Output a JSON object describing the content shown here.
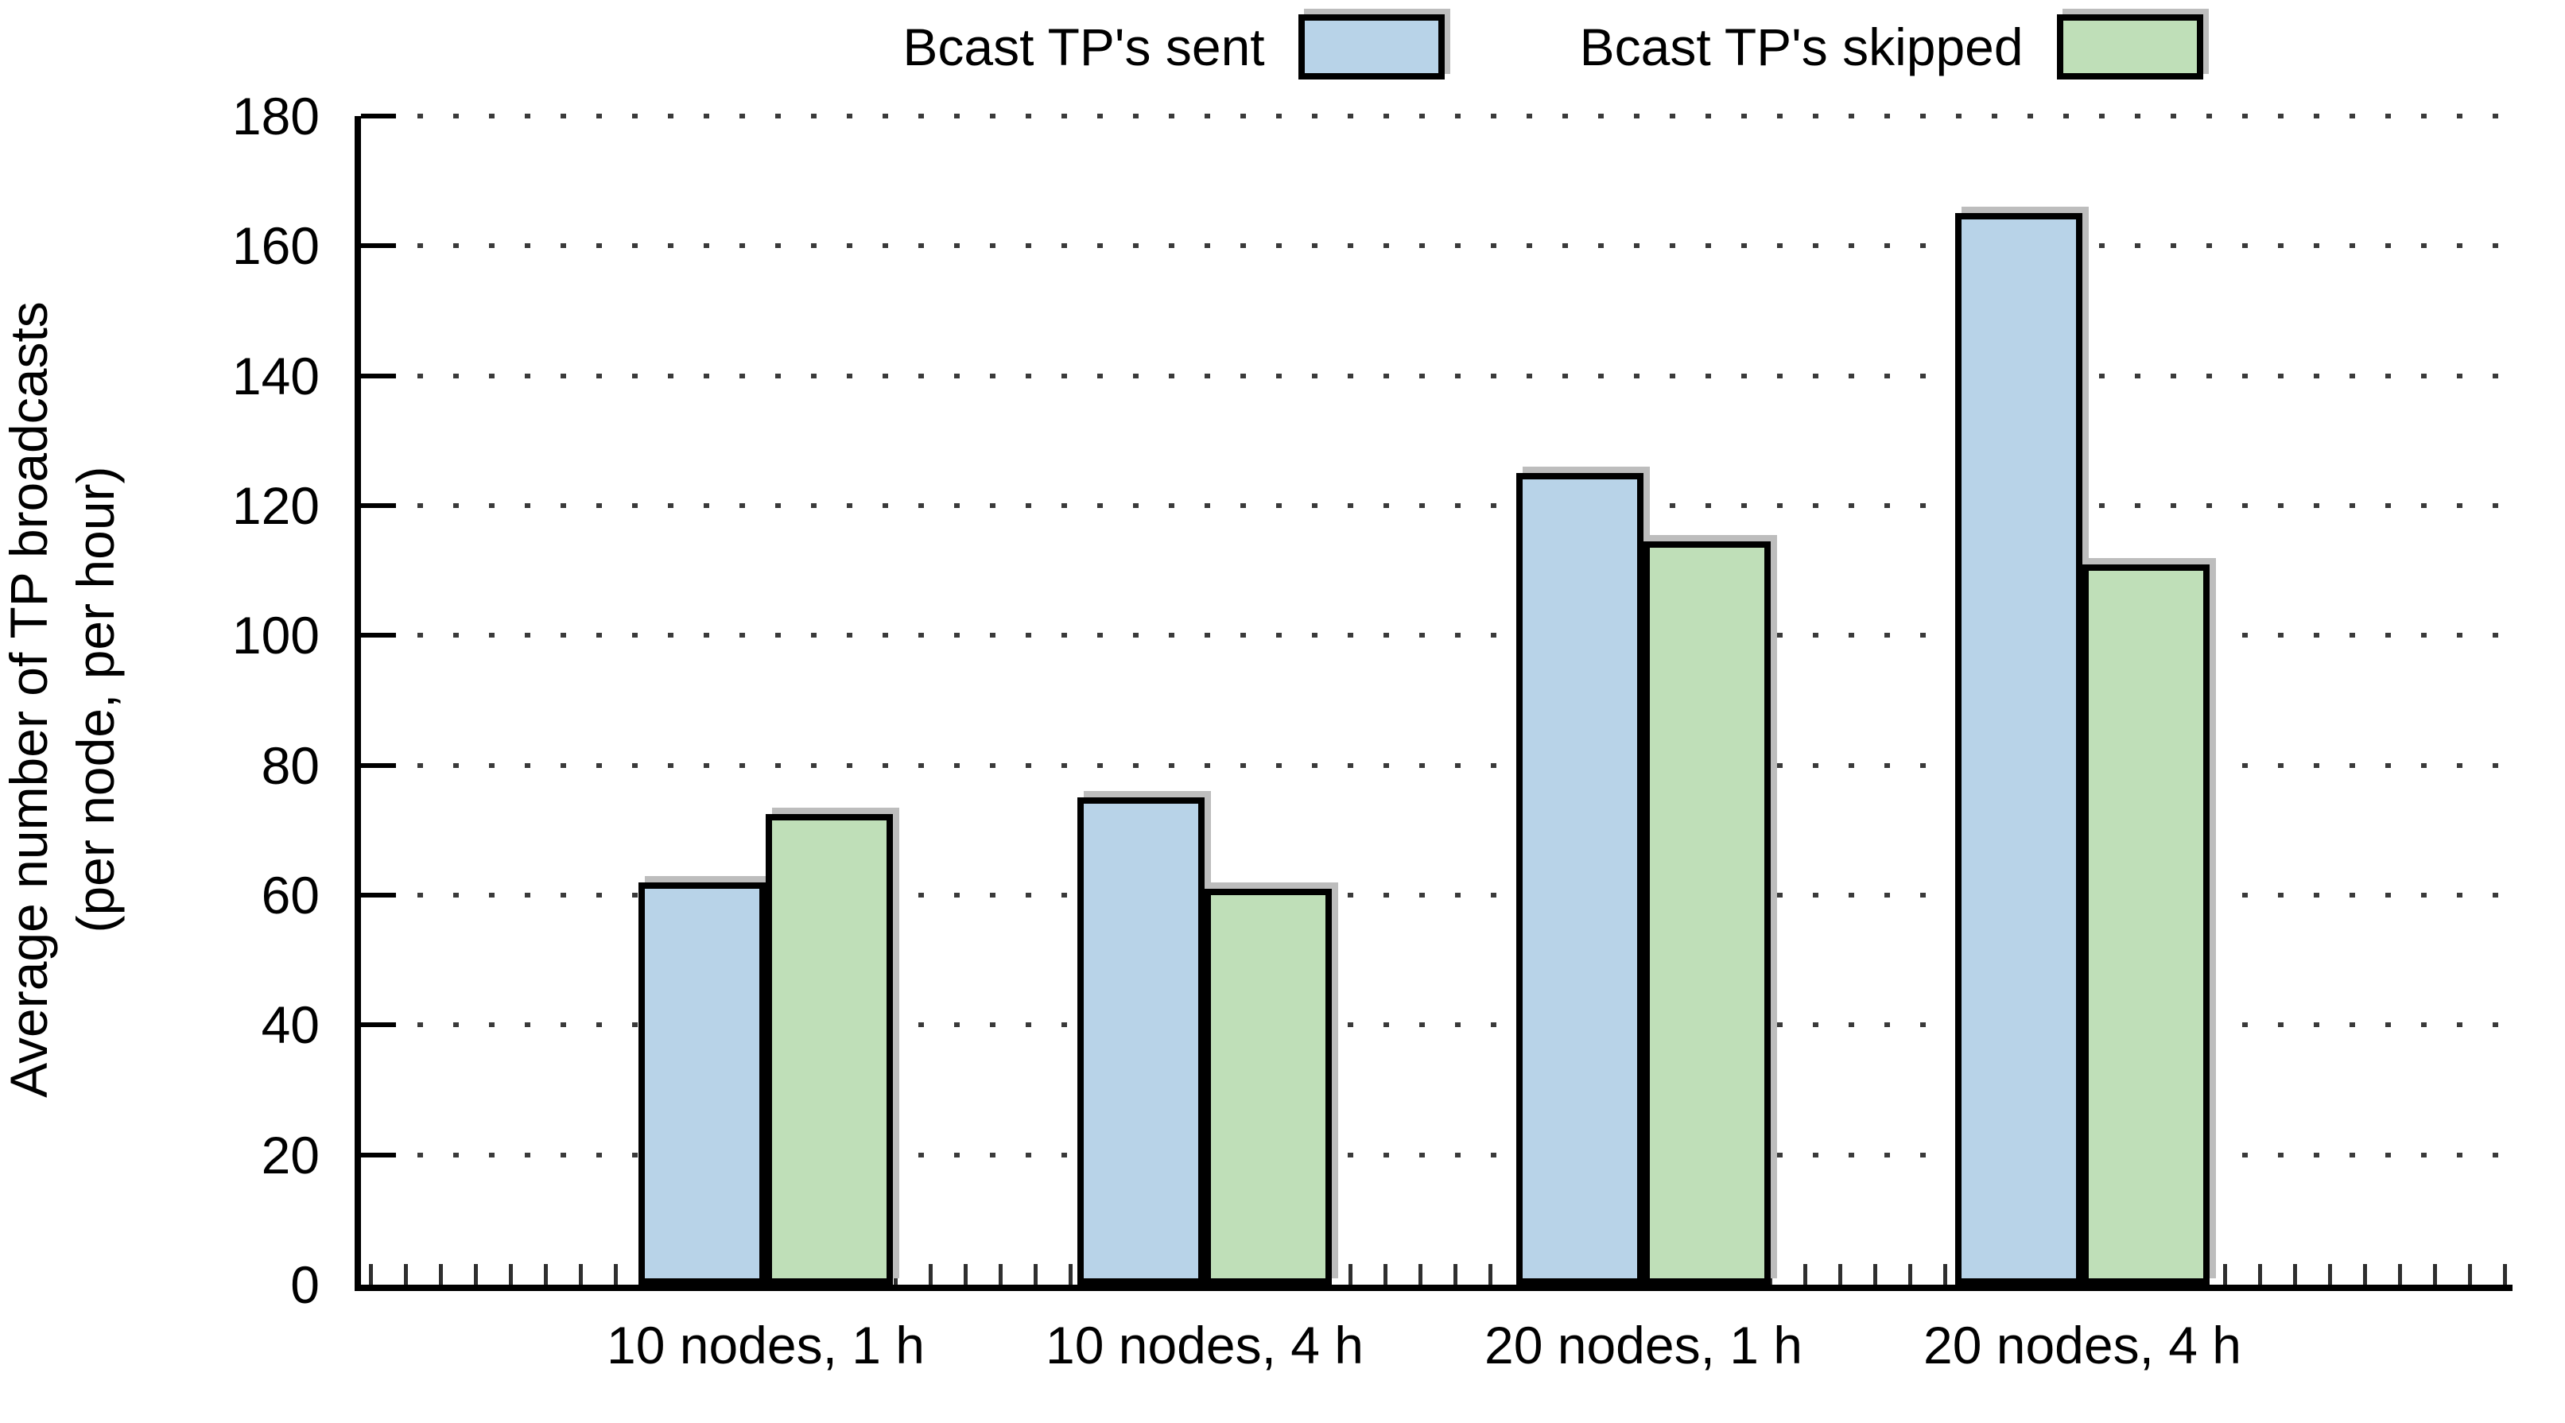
{
  "chart_data": {
    "type": "bar",
    "title": "",
    "categories": [
      "10 nodes, 1 h",
      "10 nodes, 4 h",
      "20 nodes, 1 h",
      "20 nodes, 4 h"
    ],
    "series": [
      {
        "name": "Bcast TP's sent",
        "color": "#b8d3e8",
        "values": [
          62,
          75,
          125,
          165
        ]
      },
      {
        "name": "Bcast TP's skipped",
        "color": "#bfdfb8",
        "values": [
          72.5,
          61,
          114.5,
          111
        ]
      }
    ],
    "ylabel_line1": "Average number of TP broadcasts",
    "ylabel_line2": "(per node, per hour)",
    "xlabel": "",
    "ylim": [
      0,
      180
    ],
    "ytick_step": 20,
    "grid": "dotted-horizontal",
    "legend_position": "top-center",
    "colors": {
      "axis": "#000000",
      "grid_dot": "#3a3a3a",
      "bar_border": "#000000",
      "bar_shadow": "#bdbdbd"
    }
  }
}
